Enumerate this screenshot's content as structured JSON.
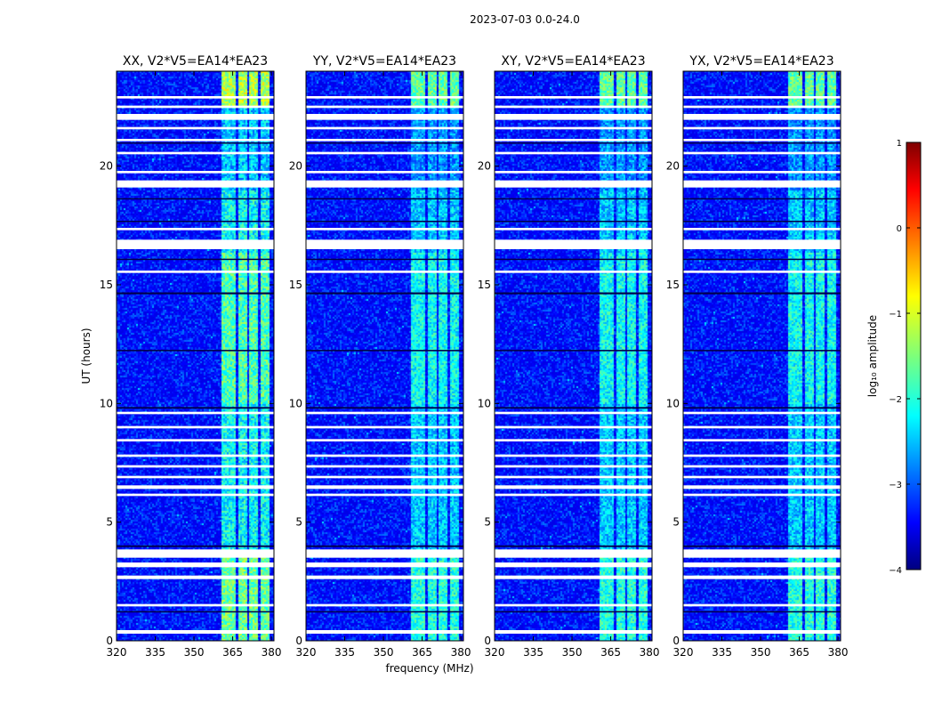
{
  "figure": {
    "suptitle": "2023-07-03 0.0-24.0",
    "xlabel": "frequency (MHz)",
    "ylabel": "UT (hours)"
  },
  "chart_data": {
    "type": "heatmap",
    "panels": [
      {
        "title": "XX, V2*V5=EA14*EA23"
      },
      {
        "title": "YY, V2*V5=EA14*EA23"
      },
      {
        "title": "XY, V2*V5=EA14*EA23"
      },
      {
        "title": "YX, V2*V5=EA14*EA23"
      }
    ],
    "x_range": [
      320,
      381
    ],
    "x_ticks": [
      320,
      335,
      350,
      365,
      380
    ],
    "x_tick_labels": [
      "320",
      "335",
      "350",
      "365",
      "380"
    ],
    "y_range": [
      0,
      24
    ],
    "y_ticks": [
      0,
      5,
      10,
      15,
      20
    ],
    "y_tick_labels": [
      "0",
      "5",
      "10",
      "15",
      "20"
    ],
    "rfi_band_mhz": [
      361,
      380
    ],
    "strong_channels_mhz": [
      [
        361,
        365.5
      ],
      [
        367.5,
        370.5
      ],
      [
        371.5,
        374.5
      ],
      [
        376,
        379
      ]
    ],
    "flagged_ut_ranges": [
      [
        0.3,
        0.45
      ],
      [
        1.45,
        1.55
      ],
      [
        2.6,
        2.75
      ],
      [
        3.1,
        3.3
      ],
      [
        3.5,
        3.85
      ],
      [
        6.1,
        6.2
      ],
      [
        6.4,
        6.55
      ],
      [
        6.85,
        6.95
      ],
      [
        7.3,
        7.4
      ],
      [
        7.75,
        7.85
      ],
      [
        8.4,
        8.5
      ],
      [
        8.95,
        9.05
      ],
      [
        9.55,
        9.65
      ],
      [
        15.5,
        15.6
      ],
      [
        16.5,
        16.9
      ],
      [
        17.3,
        17.4
      ],
      [
        19.1,
        19.4
      ],
      [
        19.7,
        19.8
      ],
      [
        20.5,
        20.6
      ],
      [
        21.05,
        21.15
      ],
      [
        21.55,
        21.65
      ],
      [
        21.95,
        22.2
      ],
      [
        22.45,
        22.55
      ],
      [
        22.85,
        22.95
      ]
    ],
    "dark_ut_lines": [
      [
        1.2,
        1.25
      ],
      [
        3.95,
        4.02
      ],
      [
        9.78,
        9.85
      ],
      [
        12.2,
        12.26
      ],
      [
        14.6,
        14.68
      ],
      [
        16.05,
        16.1
      ],
      [
        17.65,
        17.7
      ],
      [
        18.6,
        18.65
      ],
      [
        20.95,
        21.0
      ]
    ],
    "colorbar": {
      "label": "log₁₀ amplitude",
      "range": [
        -4,
        1
      ],
      "ticks": [
        1,
        0,
        -1,
        -2,
        -3,
        -4
      ],
      "tick_labels": [
        "1",
        "0",
        "−1",
        "−2",
        "−3",
        "−4"
      ],
      "colormap": "jet"
    }
  }
}
